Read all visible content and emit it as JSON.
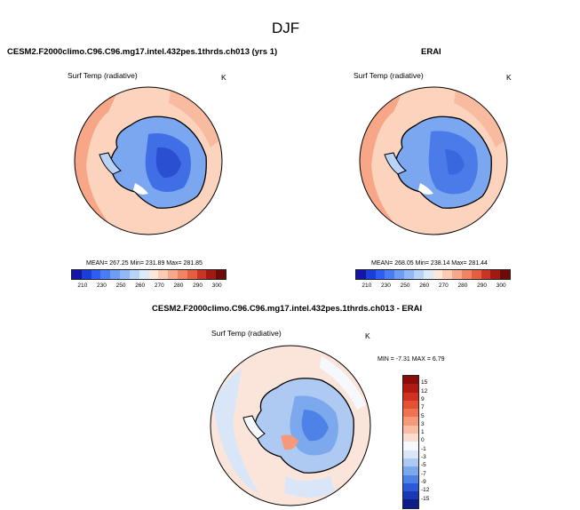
{
  "figure": {
    "title": "DJF"
  },
  "panel_left": {
    "title": "CESM2.F2000climo.C96.C96.mg17.intel.432pes.1thrds.ch013 (yrs 1)",
    "variable": "Surf Temp (radiative)",
    "units": "K",
    "stats": "MEAN= 267.25  Min= 231.89  Max= 281.85"
  },
  "panel_right": {
    "title": "ERAI",
    "variable": "Surf Temp (radiative)",
    "units": "K",
    "stats": "MEAN= 268.05  Min= 238.14  Max= 281.44"
  },
  "panel_diff": {
    "title": "CESM2.F2000climo.C96.C96.mg17.intel.432pes.1thrds.ch013 - ERAI",
    "variable": "Surf Temp (radiative)",
    "units": "K",
    "stats": "MIN = -7.31 MAX =  6.79"
  },
  "colorbar_horizontal": {
    "tick_labels": [
      "210",
      "230",
      "250",
      "260",
      "270",
      "280",
      "290",
      "300"
    ],
    "colors": [
      "#1515a8",
      "#1b3fd6",
      "#2d5ef0",
      "#4a7df2",
      "#6c9cf4",
      "#92b8f6",
      "#b9d3f8",
      "#ddeaf9",
      "#fde7dc",
      "#fbcbb3",
      "#f6a98a",
      "#f08564",
      "#e45e42",
      "#c83526",
      "#9e1a12",
      "#6e0b07"
    ]
  },
  "colorbar_vertical": {
    "tick_labels": [
      "15",
      "12",
      "9",
      "7",
      "5",
      "3",
      "1",
      "0",
      "-1",
      "-3",
      "-5",
      "-7",
      "-9",
      "-12",
      "-15"
    ],
    "colors": [
      "#8a0d0a",
      "#b01a12",
      "#d0321f",
      "#e45233",
      "#f07351",
      "#f6987a",
      "#f9bca4",
      "#fbdccf",
      "#f5f8fd",
      "#d8e6f8",
      "#aecaf3",
      "#7ca8ee",
      "#4f82e6",
      "#2c5ad6",
      "#1a38b4",
      "#0d1c87"
    ]
  }
}
